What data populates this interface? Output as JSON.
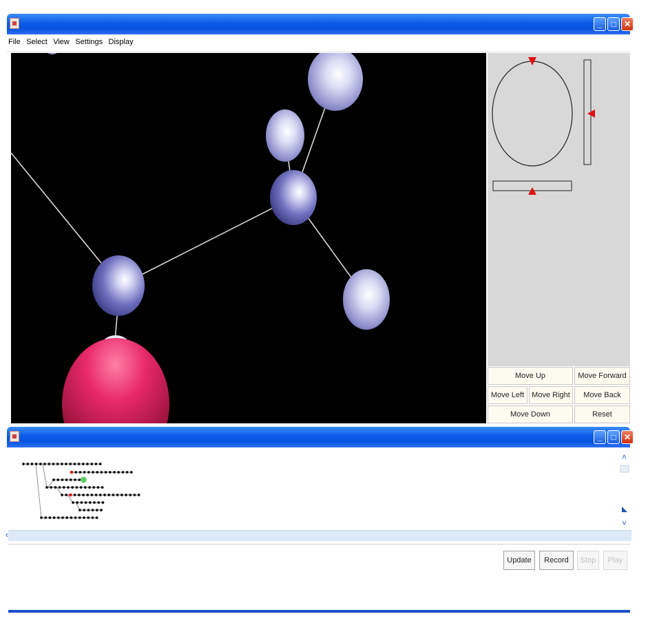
{
  "top_window": {
    "menu": [
      "File",
      "Select",
      "View",
      "Settings",
      "Display"
    ],
    "controls": {
      "move_up": "Move Up",
      "move_forward": "Move Forward",
      "move_left": "Move Left",
      "move_right": "Move Right",
      "move_back": "Move Back",
      "move_down": "Move Down",
      "reset": "Reset"
    }
  },
  "bottom_window": {
    "buttons": {
      "update": "Update",
      "record": "Record",
      "stop": "Stop",
      "play": "Play"
    }
  },
  "colors": {
    "atom": "#6a6ab8",
    "oxygen_atom": "#e0205a",
    "marker": "#e01010",
    "selected_node": "#60d060"
  }
}
